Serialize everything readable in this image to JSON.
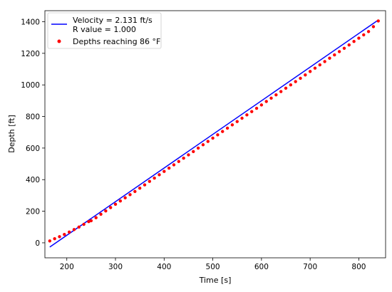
{
  "chart_data": {
    "type": "scatter",
    "xlabel": "Time [s]",
    "ylabel": "Depth [ft]",
    "xlim": [
      155,
      855
    ],
    "ylim": [
      -95,
      1470
    ],
    "xticks": [
      200,
      300,
      400,
      500,
      600,
      700,
      800
    ],
    "yticks": [
      0,
      200,
      400,
      600,
      800,
      1000,
      1200,
      1400
    ],
    "grid": false,
    "legend_position": "top-left",
    "legend": {
      "fit_line_1": "Velocity = 2.131 ft/s",
      "fit_line_2": "R value = 1.000",
      "scatter": "Depths reaching 86 °F"
    },
    "series": [
      {
        "name": "Velocity = 2.131 ft/s",
        "kind": "line",
        "color": "#0000ff",
        "x": [
          165,
          840
        ],
        "y": [
          -27,
          1411
        ]
      },
      {
        "name": "Depths reaching 86 °F",
        "kind": "scatter",
        "color": "#ff0000",
        "x": [
          165,
          175,
          185,
          195,
          205,
          215,
          225,
          235,
          245,
          250,
          260,
          270,
          280,
          290,
          300,
          310,
          320,
          330,
          340,
          350,
          360,
          370,
          380,
          390,
          400,
          410,
          420,
          430,
          440,
          450,
          460,
          470,
          480,
          490,
          500,
          510,
          520,
          530,
          540,
          550,
          560,
          570,
          580,
          590,
          600,
          610,
          620,
          630,
          640,
          650,
          660,
          670,
          680,
          690,
          700,
          710,
          720,
          730,
          740,
          750,
          760,
          770,
          780,
          790,
          800,
          810,
          820,
          830,
          840
        ],
        "y": [
          12,
          26,
          39,
          53,
          68,
          84,
          100,
          117,
          134,
          140,
          159,
          181,
          202,
          223,
          244,
          265,
          285,
          305,
          325,
          346,
          367,
          389,
          410,
          431,
          452,
          473,
          494,
          515,
          536,
          557,
          578,
          600,
          621,
          642,
          663,
          684,
          705,
          726,
          747,
          768,
          789,
          810,
          831,
          852,
          873,
          895,
          916,
          937,
          958,
          979,
          1000,
          1021,
          1042,
          1063,
          1085,
          1106,
          1127,
          1148,
          1169,
          1190,
          1211,
          1232,
          1253,
          1275,
          1296,
          1317,
          1338,
          1369,
          1405
        ]
      }
    ]
  }
}
